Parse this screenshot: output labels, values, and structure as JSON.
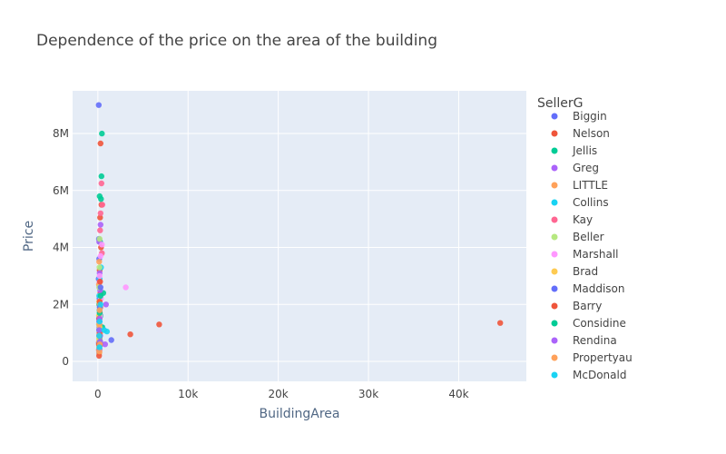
{
  "chart_data": {
    "type": "scatter",
    "title": "Dependence of the price on the area of the building",
    "xlabel": "BuildingArea",
    "ylabel": "Price",
    "xlim": [
      -2800,
      47500
    ],
    "ylim": [
      -700000,
      9500000
    ],
    "x_ticks": [
      {
        "value": 0,
        "label": "0"
      },
      {
        "value": 10000,
        "label": "10k"
      },
      {
        "value": 20000,
        "label": "20k"
      },
      {
        "value": 30000,
        "label": "30k"
      },
      {
        "value": 40000,
        "label": "40k"
      }
    ],
    "y_ticks": [
      {
        "value": 0,
        "label": "0"
      },
      {
        "value": 2000000,
        "label": "2M"
      },
      {
        "value": 4000000,
        "label": "4M"
      },
      {
        "value": 6000000,
        "label": "6M"
      },
      {
        "value": 8000000,
        "label": "8M"
      }
    ],
    "grid": true,
    "legend": {
      "title": "SellerG",
      "position": "right"
    },
    "series": [
      {
        "name": "Biggin",
        "color": "#636efa",
        "points": [
          [
            100,
            9000000
          ],
          [
            120,
            4300000
          ],
          [
            150,
            3600000
          ],
          [
            90,
            2900000
          ],
          [
            200,
            1800000
          ],
          [
            160,
            1200000
          ],
          [
            110,
            650000
          ],
          [
            140,
            300000
          ],
          [
            180,
            2200000
          ],
          [
            130,
            1500000
          ]
        ]
      },
      {
        "name": "Nelson",
        "color": "#ef553b",
        "points": [
          [
            300,
            7650000
          ],
          [
            400,
            5500000
          ],
          [
            250,
            5050000
          ],
          [
            350,
            4000000
          ],
          [
            3600,
            950000
          ],
          [
            6800,
            1300000
          ],
          [
            44600,
            1350000
          ],
          [
            200,
            3200000
          ],
          [
            280,
            2400000
          ],
          [
            220,
            1700000
          ],
          [
            180,
            900000
          ],
          [
            320,
            600000
          ]
        ]
      },
      {
        "name": "Jellis",
        "color": "#00cc96",
        "points": [
          [
            450,
            8000000
          ],
          [
            400,
            6500000
          ],
          [
            200,
            5800000
          ],
          [
            350,
            5700000
          ],
          [
            250,
            4200000
          ],
          [
            600,
            2400000
          ],
          [
            150,
            2000000
          ],
          [
            300,
            1600000
          ],
          [
            500,
            1200000
          ],
          [
            200,
            800000
          ],
          [
            150,
            400000
          ]
        ]
      },
      {
        "name": "Greg",
        "color": "#ab63fa",
        "points": [
          [
            300,
            4800000
          ],
          [
            150,
            4200000
          ],
          [
            200,
            3100000
          ],
          [
            800,
            600000
          ],
          [
            250,
            2500000
          ],
          [
            180,
            1400000
          ],
          [
            140,
            900000
          ],
          [
            160,
            300000
          ]
        ]
      },
      {
        "name": "LITTLE",
        "color": "#ffa15a",
        "points": [
          [
            150,
            3500000
          ],
          [
            120,
            2700000
          ],
          [
            200,
            2000000
          ],
          [
            180,
            1500000
          ],
          [
            250,
            1000000
          ],
          [
            130,
            700000
          ],
          [
            110,
            400000
          ]
        ]
      },
      {
        "name": "Collins",
        "color": "#19d3f3",
        "points": [
          [
            350,
            3300000
          ],
          [
            1000,
            1050000
          ],
          [
            200,
            2900000
          ],
          [
            150,
            2300000
          ],
          [
            180,
            1800000
          ],
          [
            140,
            1100000
          ],
          [
            160,
            500000
          ]
        ]
      },
      {
        "name": "Kay",
        "color": "#ff6692",
        "points": [
          [
            400,
            6250000
          ],
          [
            300,
            5200000
          ],
          [
            500,
            5500000
          ],
          [
            250,
            4600000
          ],
          [
            450,
            3800000
          ],
          [
            200,
            2800000
          ],
          [
            300,
            1900000
          ],
          [
            180,
            1300000
          ]
        ]
      },
      {
        "name": "Beller",
        "color": "#b6e880",
        "points": [
          [
            200,
            4300000
          ],
          [
            180,
            3300000
          ],
          [
            150,
            2600000
          ],
          [
            250,
            1900000
          ],
          [
            120,
            1300000
          ],
          [
            140,
            800000
          ]
        ]
      },
      {
        "name": "Marshall",
        "color": "#ff97ff",
        "points": [
          [
            3100,
            2600000
          ],
          [
            450,
            4100000
          ],
          [
            300,
            3700000
          ],
          [
            200,
            3000000
          ],
          [
            350,
            2200000
          ],
          [
            250,
            1600000
          ],
          [
            180,
            1000000
          ]
        ]
      },
      {
        "name": "Brad",
        "color": "#fecb52",
        "points": [
          [
            150,
            2100000
          ],
          [
            120,
            1600000
          ],
          [
            200,
            1200000
          ],
          [
            180,
            800000
          ],
          [
            140,
            500000
          ],
          [
            160,
            300000
          ]
        ]
      },
      {
        "name": "Maddison",
        "color": "#636efa",
        "points": [
          [
            1500,
            750000
          ],
          [
            300,
            2600000
          ],
          [
            200,
            1900000
          ],
          [
            150,
            1400000
          ],
          [
            250,
            900000
          ]
        ]
      },
      {
        "name": "Barry",
        "color": "#ef553b",
        "points": [
          [
            250,
            2800000
          ],
          [
            200,
            2100000
          ],
          [
            150,
            1500000
          ],
          [
            180,
            1000000
          ],
          [
            120,
            600000
          ],
          [
            140,
            200000
          ]
        ]
      },
      {
        "name": "Considine",
        "color": "#00cc96",
        "points": [
          [
            300,
            2300000
          ],
          [
            200,
            1700000
          ],
          [
            150,
            1100000
          ],
          [
            250,
            700000
          ],
          [
            180,
            450000
          ]
        ]
      },
      {
        "name": "Rendina",
        "color": "#ab63fa",
        "points": [
          [
            900,
            2000000
          ],
          [
            200,
            1500000
          ],
          [
            150,
            1100000
          ],
          [
            250,
            700000
          ],
          [
            180,
            400000
          ]
        ]
      },
      {
        "name": "Propertyau",
        "color": "#ffa15a",
        "points": [
          [
            200,
            1800000
          ],
          [
            160,
            1300000
          ],
          [
            140,
            900000
          ],
          [
            220,
            600000
          ],
          [
            180,
            350000
          ]
        ]
      },
      {
        "name": "McDonald",
        "color": "#19d3f3",
        "points": [
          [
            700,
            1100000
          ],
          [
            300,
            2000000
          ],
          [
            200,
            1400000
          ],
          [
            150,
            900000
          ],
          [
            180,
            500000
          ]
        ]
      }
    ]
  }
}
